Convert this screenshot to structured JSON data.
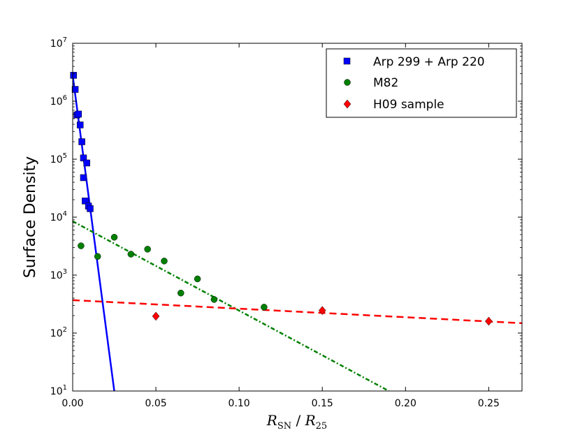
{
  "chart_data": {
    "type": "scatter",
    "title": "",
    "ylabel": "Surface Density",
    "xlabel": {
      "var": "R",
      "sub": "SN",
      "sep": " / ",
      "var2": "R",
      "sub2": "25"
    },
    "xlim": [
      0.0,
      0.27
    ],
    "ylim_log10": [
      1,
      7
    ],
    "yscale": "log",
    "x_ticks": [
      0.0,
      0.05,
      0.1,
      0.15,
      0.2,
      0.25
    ],
    "x_tick_labels": [
      "0.00",
      "0.05",
      "0.10",
      "0.15",
      "0.20",
      "0.25"
    ],
    "y_ticks": [
      {
        "base": "10",
        "exp": "1"
      },
      {
        "base": "10",
        "exp": "2"
      },
      {
        "base": "10",
        "exp": "3"
      },
      {
        "base": "10",
        "exp": "4"
      },
      {
        "base": "10",
        "exp": "5"
      },
      {
        "base": "10",
        "exp": "6"
      },
      {
        "base": "10",
        "exp": "7"
      }
    ],
    "legend_position": "top-right",
    "series": [
      {
        "name": "Arp 299 + Arp 220",
        "marker": "square",
        "color": "#0000ff",
        "x": [
          0.0005,
          0.0015,
          0.0025,
          0.0035,
          0.0045,
          0.0055,
          0.0065,
          0.0065,
          0.0075,
          0.0085,
          0.0095,
          0.0105
        ],
        "y": [
          2800000,
          1600000,
          580000,
          600000,
          390000,
          200000,
          105000,
          48000,
          19000,
          86000,
          15500,
          14000
        ],
        "fit": {
          "style": "solid",
          "color": "#0000ff",
          "x": [
            0.0,
            0.025
          ],
          "y": [
            2800000,
            10
          ]
        }
      },
      {
        "name": "M82",
        "marker": "circle",
        "color": "#008000",
        "x": [
          0.005,
          0.015,
          0.025,
          0.035,
          0.045,
          0.055,
          0.065,
          0.075,
          0.085,
          0.115
        ],
        "y": [
          3200,
          2100,
          4500,
          2300,
          2800,
          1750,
          490,
          860,
          380,
          280
        ],
        "fit": {
          "style": "dashdot",
          "color": "#008000",
          "x": [
            0.0,
            0.19
          ],
          "y": [
            8500,
            10
          ]
        }
      },
      {
        "name": "H09 sample",
        "marker": "diamond",
        "color": "#ff0000",
        "x": [
          0.05,
          0.15,
          0.25
        ],
        "y": [
          195,
          245,
          160
        ],
        "fit": {
          "style": "dashed",
          "color": "#ff0000",
          "x": [
            0.0,
            0.27
          ],
          "y": [
            370,
            148
          ]
        }
      }
    ]
  }
}
